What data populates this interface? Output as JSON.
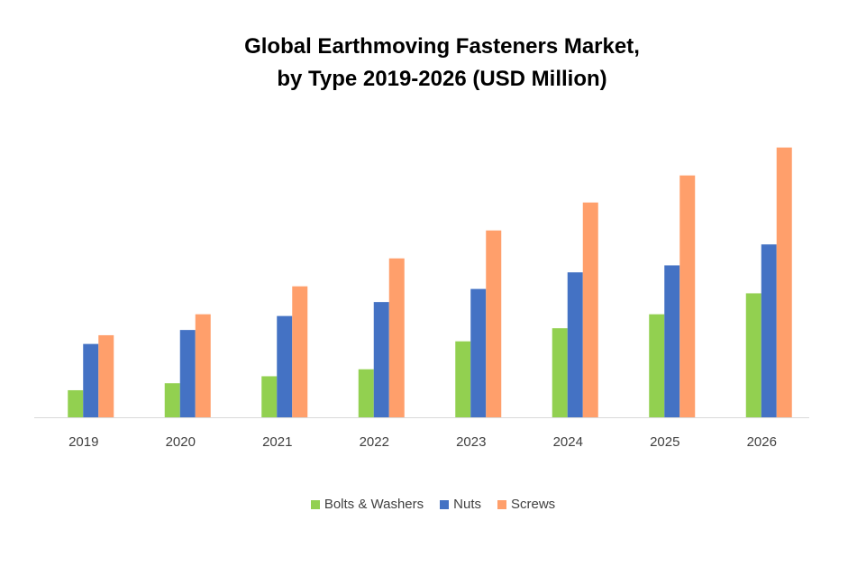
{
  "chart_data": {
    "type": "bar",
    "title": "Global Earthmoving Fasteners Market, by Type 2019-2026 (USD Million)",
    "title_lines": [
      "Global Earthmoving Fasteners Market,",
      "by Type 2019-2026 (USD Million)"
    ],
    "categories": [
      "2019",
      "2020",
      "2021",
      "2022",
      "2023",
      "2024",
      "2025",
      "2026"
    ],
    "series": [
      {
        "name": "Bolts & Washers",
        "color": "#92D050",
        "values": [
          31,
          39,
          47,
          55,
          87,
          102,
          118,
          142
        ]
      },
      {
        "name": "Nuts",
        "color": "#4472C4",
        "values": [
          84,
          100,
          116,
          132,
          147,
          166,
          174,
          198
        ]
      },
      {
        "name": "Screws",
        "color": "#FF9F6B",
        "values": [
          94,
          118,
          150,
          182,
          214,
          246,
          277,
          309
        ]
      }
    ],
    "xlabel": "",
    "ylabel": "",
    "ylim": [
      0,
      320
    ],
    "y_axis_visible": false,
    "grid": false,
    "legend": "bottom"
  }
}
